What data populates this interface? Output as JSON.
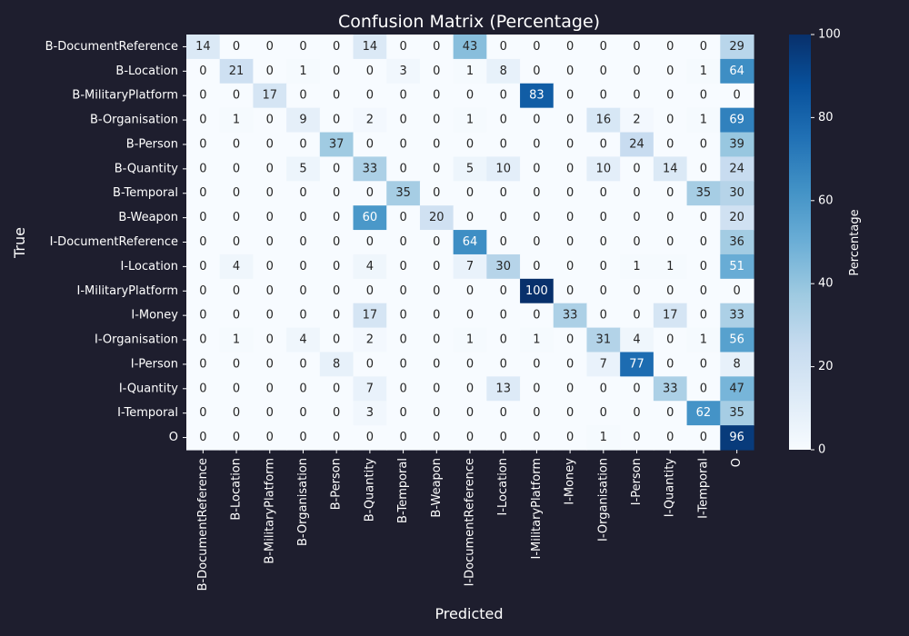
{
  "chart_data": {
    "type": "heatmap",
    "title": "Confusion Matrix (Percentage)",
    "xlabel": "Predicted",
    "ylabel": "True",
    "labels": [
      "B-DocumentReference",
      "B-Location",
      "B-MilitaryPlatform",
      "B-Organisation",
      "B-Person",
      "B-Quantity",
      "B-Temporal",
      "B-Weapon",
      "I-DocumentReference",
      "I-Location",
      "I-MilitaryPlatform",
      "I-Money",
      "I-Organisation",
      "I-Person",
      "I-Quantity",
      "I-Temporal",
      "O"
    ],
    "matrix": [
      [
        14,
        0,
        0,
        0,
        0,
        14,
        0,
        0,
        43,
        0,
        0,
        0,
        0,
        0,
        0,
        0,
        29
      ],
      [
        0,
        21,
        0,
        1,
        0,
        0,
        3,
        0,
        1,
        8,
        0,
        0,
        0,
        0,
        0,
        1,
        64
      ],
      [
        0,
        0,
        17,
        0,
        0,
        0,
        0,
        0,
        0,
        0,
        83,
        0,
        0,
        0,
        0,
        0,
        0
      ],
      [
        0,
        1,
        0,
        9,
        0,
        2,
        0,
        0,
        1,
        0,
        0,
        0,
        16,
        2,
        0,
        1,
        69
      ],
      [
        0,
        0,
        0,
        0,
        37,
        0,
        0,
        0,
        0,
        0,
        0,
        0,
        0,
        24,
        0,
        0,
        39
      ],
      [
        0,
        0,
        0,
        5,
        0,
        33,
        0,
        0,
        5,
        10,
        0,
        0,
        10,
        0,
        14,
        0,
        24
      ],
      [
        0,
        0,
        0,
        0,
        0,
        0,
        35,
        0,
        0,
        0,
        0,
        0,
        0,
        0,
        0,
        35,
        30
      ],
      [
        0,
        0,
        0,
        0,
        0,
        60,
        0,
        20,
        0,
        0,
        0,
        0,
        0,
        0,
        0,
        0,
        20
      ],
      [
        0,
        0,
        0,
        0,
        0,
        0,
        0,
        0,
        64,
        0,
        0,
        0,
        0,
        0,
        0,
        0,
        36
      ],
      [
        0,
        4,
        0,
        0,
        0,
        4,
        0,
        0,
        7,
        30,
        0,
        0,
        0,
        1,
        1,
        0,
        51
      ],
      [
        0,
        0,
        0,
        0,
        0,
        0,
        0,
        0,
        0,
        0,
        100,
        0,
        0,
        0,
        0,
        0,
        0
      ],
      [
        0,
        0,
        0,
        0,
        0,
        17,
        0,
        0,
        0,
        0,
        0,
        33,
        0,
        0,
        17,
        0,
        33
      ],
      [
        0,
        1,
        0,
        4,
        0,
        2,
        0,
        0,
        1,
        0,
        1,
        0,
        31,
        4,
        0,
        1,
        56
      ],
      [
        0,
        0,
        0,
        0,
        8,
        0,
        0,
        0,
        0,
        0,
        0,
        0,
        7,
        77,
        0,
        0,
        8
      ],
      [
        0,
        0,
        0,
        0,
        0,
        7,
        0,
        0,
        0,
        13,
        0,
        0,
        0,
        0,
        33,
        0,
        47
      ],
      [
        0,
        0,
        0,
        0,
        0,
        3,
        0,
        0,
        0,
        0,
        0,
        0,
        0,
        0,
        0,
        62,
        35
      ],
      [
        0,
        0,
        0,
        0,
        0,
        0,
        0,
        0,
        0,
        0,
        0,
        0,
        1,
        0,
        0,
        0,
        96
      ]
    ],
    "colorbar": {
      "label": "Percentage",
      "range": [
        0,
        100
      ],
      "ticks": [
        0,
        20,
        40,
        60,
        80,
        100
      ]
    },
    "colormap": "Blues",
    "colors": {
      "background": "#1e1e2e",
      "text": "#ffffff",
      "low": "#f7fbff",
      "high": "#08306b"
    }
  }
}
